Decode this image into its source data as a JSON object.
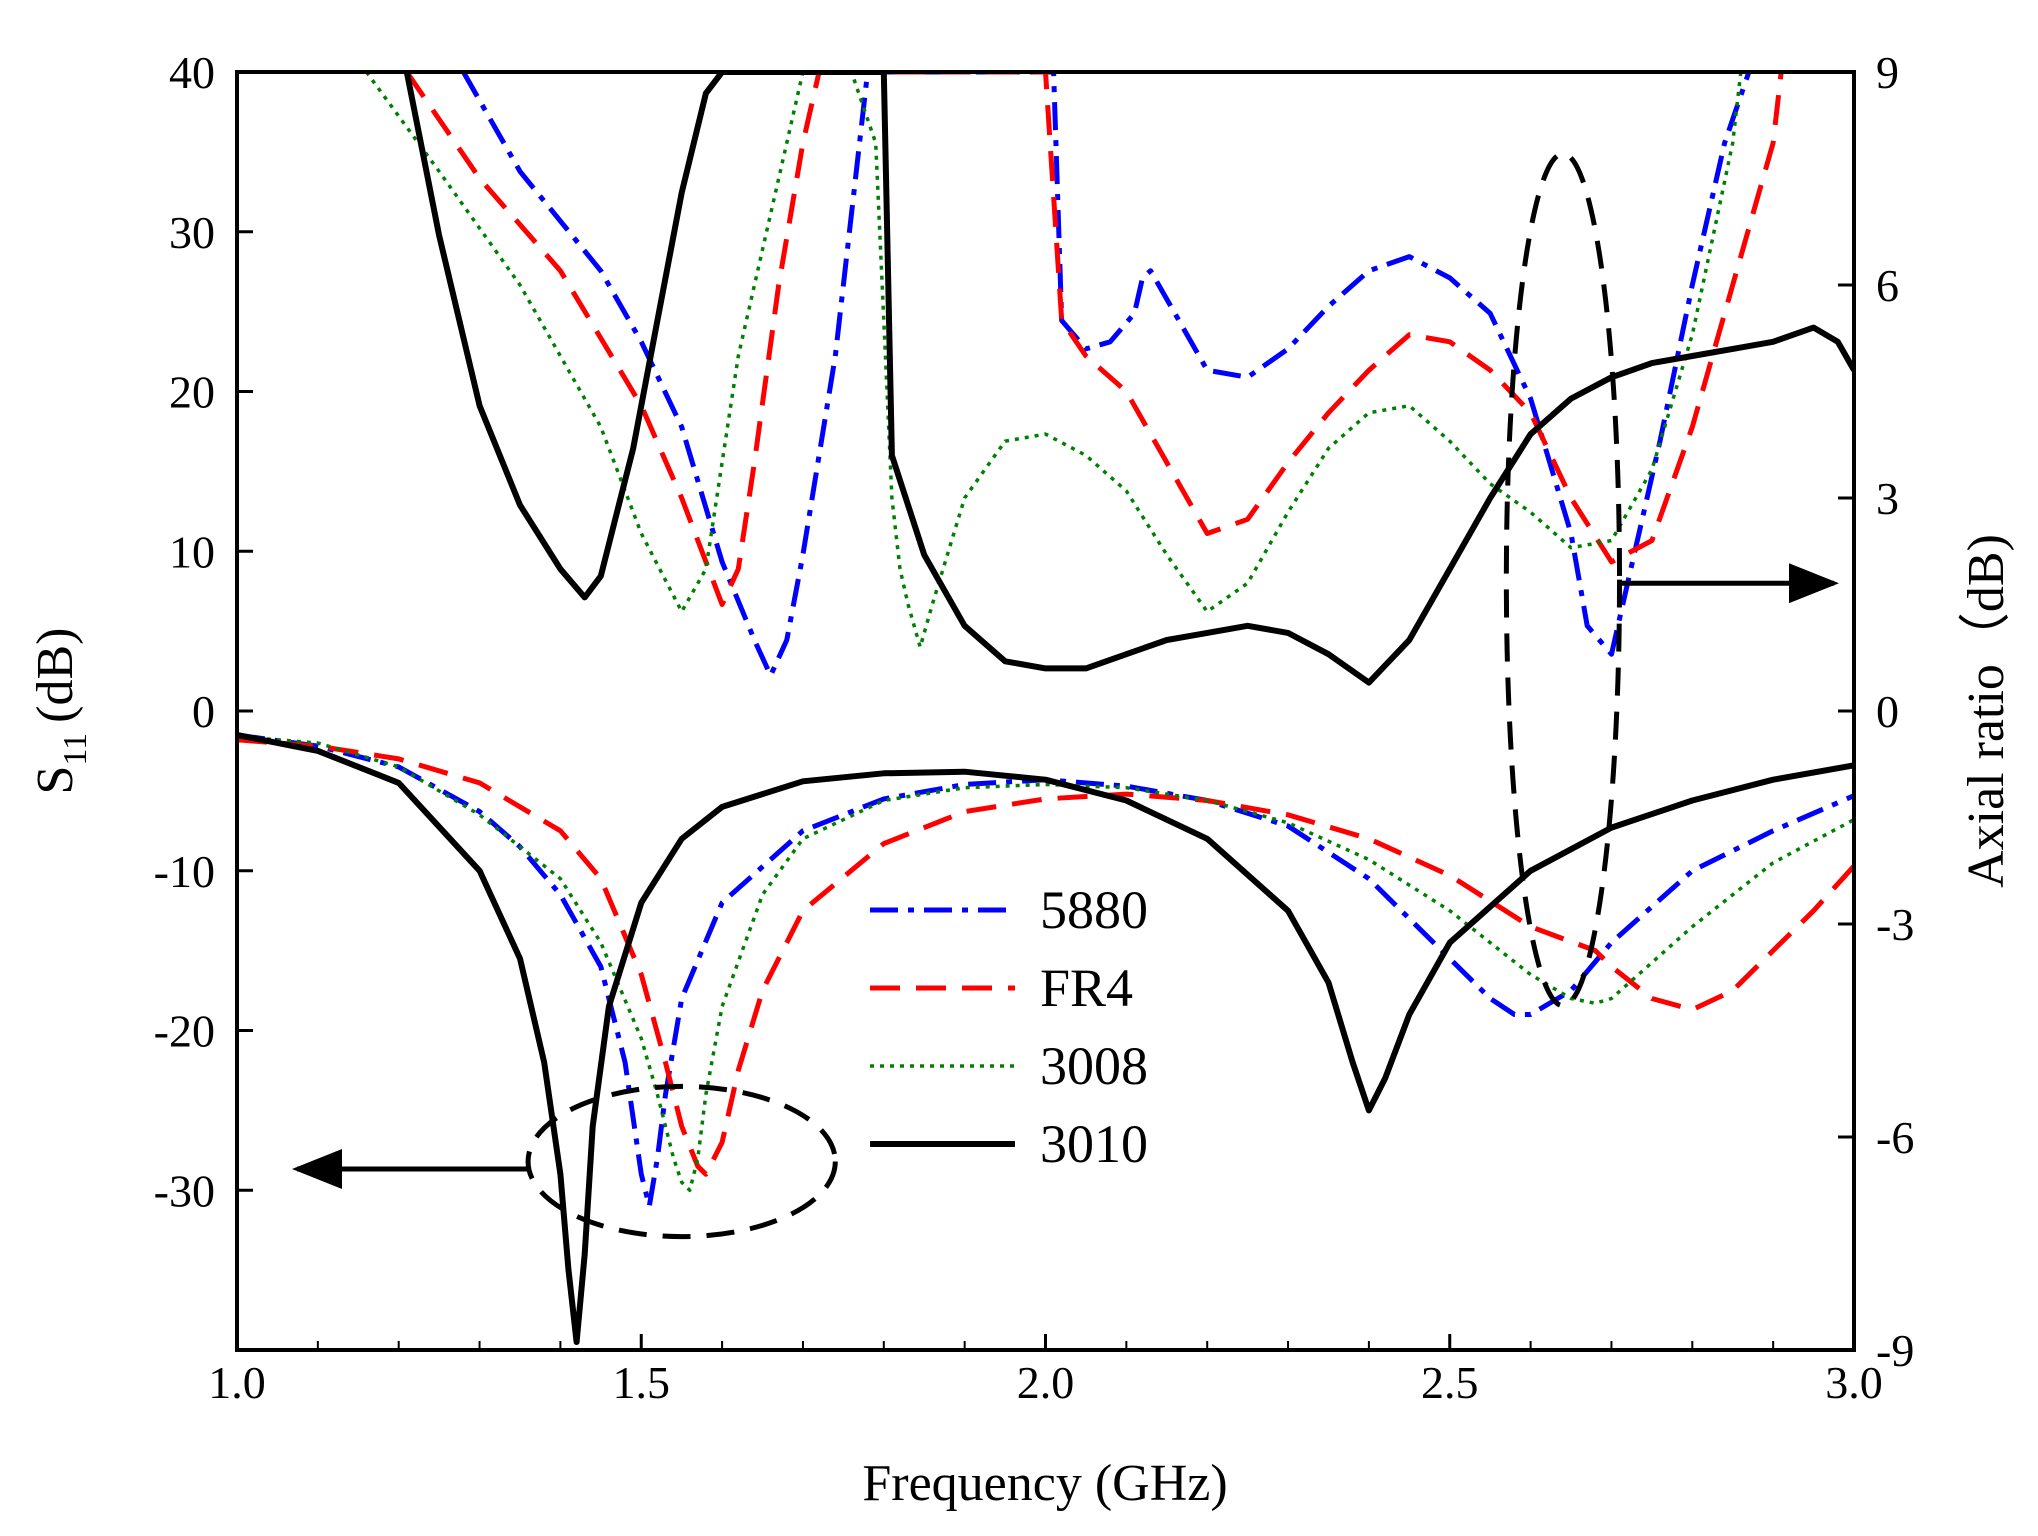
{
  "chart_data": {
    "type": "line",
    "xlabel": "Frequency (GHz)",
    "ylabel_left": {
      "main": "S",
      "sub": "11",
      "unit": "(dB)"
    },
    "ylabel_right": "Axial ratio（dB)",
    "xlim": [
      1.0,
      3.0
    ],
    "ylim_left": [
      -40,
      40
    ],
    "ylim_right": [
      -9,
      9
    ],
    "x_ticks": [
      "1.0",
      "1.5",
      "2.0",
      "2.5",
      "3.0"
    ],
    "y_ticks_left": [
      "40",
      "30",
      "20",
      "10",
      "0",
      "-10",
      "-20",
      "-30"
    ],
    "y_ticks_right": [
      "9",
      "6",
      "3",
      "0",
      "-3",
      "-6",
      "-9"
    ],
    "legend": [
      "5880",
      "FR4",
      "3008",
      "3010"
    ],
    "colors": {
      "5880": "#0000ff",
      "FR4": "#ff0000",
      "3008": "#008000",
      "3010": "#000000"
    },
    "series": [
      {
        "name": "5880",
        "axis": "left",
        "x": [
          1.0,
          1.1,
          1.2,
          1.3,
          1.35,
          1.4,
          1.45,
          1.48,
          1.5,
          1.51,
          1.52,
          1.53,
          1.55,
          1.6,
          1.7,
          1.8,
          1.9,
          2.0,
          2.1,
          2.2,
          2.3,
          2.4,
          2.5,
          2.55,
          2.58,
          2.6,
          2.65,
          2.7,
          2.8,
          2.9,
          3.0
        ],
        "y": [
          -1.5,
          -2.2,
          -3.5,
          -6.3,
          -8.5,
          -11.5,
          -16,
          -22,
          -29,
          -31,
          -28,
          -24,
          -18,
          -12,
          -7.5,
          -5.5,
          -4.6,
          -4.3,
          -4.7,
          -5.6,
          -7.2,
          -10.5,
          -15.5,
          -18,
          -19,
          -19,
          -17.5,
          -14.5,
          -10,
          -7.5,
          -5.3
        ]
      },
      {
        "name": "FR4",
        "axis": "left",
        "x": [
          1.0,
          1.1,
          1.2,
          1.3,
          1.4,
          1.45,
          1.5,
          1.53,
          1.55,
          1.57,
          1.58,
          1.6,
          1.62,
          1.65,
          1.7,
          1.8,
          1.9,
          2.0,
          2.1,
          2.2,
          2.3,
          2.4,
          2.5,
          2.6,
          2.68,
          2.7,
          2.75,
          2.8,
          2.85,
          2.9,
          2.95,
          3.0
        ],
        "y": [
          -1.8,
          -2.2,
          -3,
          -4.5,
          -7.5,
          -10.5,
          -16.5,
          -22,
          -26,
          -28.5,
          -29,
          -27,
          -22.5,
          -17.5,
          -12.5,
          -8.3,
          -6.3,
          -5.5,
          -5.2,
          -5.6,
          -6.5,
          -8,
          -10.3,
          -13.5,
          -15,
          -16,
          -18,
          -18.7,
          -17.5,
          -15,
          -12.5,
          -9.7
        ]
      },
      {
        "name": "3008",
        "axis": "left",
        "x": [
          1.0,
          1.1,
          1.2,
          1.3,
          1.4,
          1.45,
          1.5,
          1.52,
          1.54,
          1.55,
          1.56,
          1.57,
          1.58,
          1.6,
          1.65,
          1.7,
          1.8,
          1.9,
          2.0,
          2.1,
          2.2,
          2.3,
          2.4,
          2.5,
          2.6,
          2.65,
          2.68,
          2.7,
          2.8,
          2.9,
          3.0
        ],
        "y": [
          -1.6,
          -2,
          -3.5,
          -6.5,
          -10.5,
          -14.5,
          -20.5,
          -24,
          -28,
          -29.5,
          -30,
          -28,
          -24,
          -18.5,
          -11.5,
          -8,
          -5.6,
          -4.8,
          -4.6,
          -4.8,
          -5.6,
          -7,
          -9.3,
          -12.5,
          -16.5,
          -18,
          -18.3,
          -18,
          -13.5,
          -9.5,
          -6.8
        ]
      },
      {
        "name": "3010",
        "axis": "left",
        "x": [
          1.0,
          1.1,
          1.2,
          1.3,
          1.35,
          1.38,
          1.4,
          1.41,
          1.42,
          1.43,
          1.44,
          1.46,
          1.5,
          1.55,
          1.6,
          1.7,
          1.8,
          1.9,
          2.0,
          2.1,
          2.2,
          2.3,
          2.35,
          2.38,
          2.4,
          2.42,
          2.45,
          2.5,
          2.6,
          2.7,
          2.8,
          2.9,
          3.0
        ],
        "y": [
          -1.5,
          -2.5,
          -4.5,
          -10,
          -15.5,
          -22,
          -29,
          -35,
          -39.5,
          -34,
          -26,
          -18.5,
          -12,
          -8,
          -6,
          -4.4,
          -3.9,
          -3.8,
          -4.3,
          -5.6,
          -8,
          -12.5,
          -17,
          -22,
          -25,
          -23,
          -19,
          -14.5,
          -10,
          -7.3,
          -5.6,
          -4.3,
          -3.4
        ]
      },
      {
        "name": "5880 AR",
        "axis": "right",
        "x": [
          1.28,
          1.35,
          1.45,
          1.5,
          1.55,
          1.6,
          1.64,
          1.66,
          1.68,
          1.7,
          1.74,
          1.78,
          2.01,
          2.02,
          2.05,
          2.08,
          2.11,
          2.12,
          2.13,
          2.16,
          2.2,
          2.25,
          2.3,
          2.35,
          2.4,
          2.45,
          2.5,
          2.55,
          2.6,
          2.65,
          2.67,
          2.7,
          2.72,
          2.76,
          2.8,
          2.84,
          2.87
        ],
        "y": [
          9,
          7.6,
          6.2,
          5.2,
          4,
          2.1,
          1.0,
          0.5,
          1.0,
          2.2,
          5,
          9,
          9,
          5.5,
          5.1,
          5.2,
          5.6,
          6.1,
          6.2,
          5.6,
          4.8,
          4.7,
          5.1,
          5.7,
          6.2,
          6.4,
          6.1,
          5.6,
          4.4,
          2.5,
          1.2,
          0.8,
          1.8,
          3.8,
          6.0,
          8.0,
          9
        ]
      },
      {
        "name": "FR4 AR",
        "axis": "right",
        "x": [
          1.21,
          1.3,
          1.4,
          1.5,
          1.55,
          1.6,
          1.62,
          1.64,
          1.67,
          1.7,
          1.72,
          2.0,
          2.02,
          2.05,
          2.1,
          2.15,
          2.2,
          2.25,
          2.3,
          2.35,
          2.4,
          2.45,
          2.5,
          2.55,
          2.6,
          2.65,
          2.7,
          2.75,
          2.8,
          2.85,
          2.9,
          2.91
        ],
        "y": [
          9,
          7.5,
          6.2,
          4.3,
          3,
          1.5,
          2.0,
          3.5,
          6.0,
          8,
          9,
          9,
          5.5,
          5.0,
          4.5,
          3.5,
          2.5,
          2.7,
          3.5,
          4.2,
          4.8,
          5.3,
          5.2,
          4.8,
          4.2,
          3.0,
          2.1,
          2.4,
          4.0,
          6.0,
          8.0,
          9
        ]
      },
      {
        "name": "3008 AR",
        "axis": "right",
        "x": [
          1.16,
          1.25,
          1.35,
          1.45,
          1.5,
          1.55,
          1.58,
          1.6,
          1.62,
          1.66,
          1.7,
          1.76,
          1.79,
          1.8,
          1.81,
          1.82,
          1.83,
          1.845,
          1.86,
          1.9,
          1.95,
          2.0,
          2.05,
          2.1,
          2.15,
          2.2,
          2.25,
          2.3,
          2.35,
          2.4,
          2.45,
          2.5,
          2.55,
          2.6,
          2.65,
          2.7,
          2.75,
          2.8,
          2.85,
          2.86
        ],
        "y": [
          9,
          7.6,
          6.0,
          4.0,
          2.5,
          1.4,
          2.0,
          3.5,
          5.0,
          7.0,
          9,
          9,
          8.0,
          5.5,
          3.0,
          2.0,
          1.5,
          0.9,
          1.5,
          3.0,
          3.8,
          3.9,
          3.6,
          3.1,
          2.2,
          1.4,
          1.8,
          2.8,
          3.7,
          4.2,
          4.3,
          3.8,
          3.2,
          2.8,
          2.3,
          2.4,
          3.4,
          5.3,
          8.0,
          9
        ]
      },
      {
        "name": "3010 AR",
        "axis": "right",
        "x": [
          1.21,
          1.25,
          1.3,
          1.35,
          1.4,
          1.43,
          1.45,
          1.47,
          1.49,
          1.52,
          1.55,
          1.58,
          1.6,
          1.8,
          1.81,
          1.85,
          1.9,
          1.95,
          2.0,
          2.05,
          2.1,
          2.15,
          2.2,
          2.25,
          2.3,
          2.35,
          2.4,
          2.45,
          2.5,
          2.55,
          2.6,
          2.65,
          2.7,
          2.75,
          2.8,
          2.85,
          2.9,
          2.95,
          2.98,
          3.0
        ],
        "y": [
          9,
          6.7,
          4.3,
          2.9,
          2.0,
          1.6,
          1.9,
          2.8,
          3.7,
          5.5,
          7.3,
          8.7,
          9,
          9,
          3.6,
          2.2,
          1.2,
          0.7,
          0.6,
          0.6,
          0.8,
          1.0,
          1.1,
          1.2,
          1.1,
          0.8,
          0.4,
          1.0,
          2.0,
          3.0,
          3.9,
          4.4,
          4.7,
          4.9,
          5.0,
          5.1,
          5.2,
          5.4,
          5.2,
          4.8
        ]
      }
    ],
    "annotations": [
      {
        "type": "ellipse",
        "cx": 1.55,
        "cy": -28.2,
        "rx": 0.19,
        "ry": 4.7,
        "axis": "left",
        "arrow_to": "left"
      },
      {
        "type": "ellipse",
        "cx": 2.64,
        "cy": 1.85,
        "rx": 0.07,
        "ry": 6.0,
        "axis": "right",
        "arrow_to": "right"
      }
    ]
  }
}
